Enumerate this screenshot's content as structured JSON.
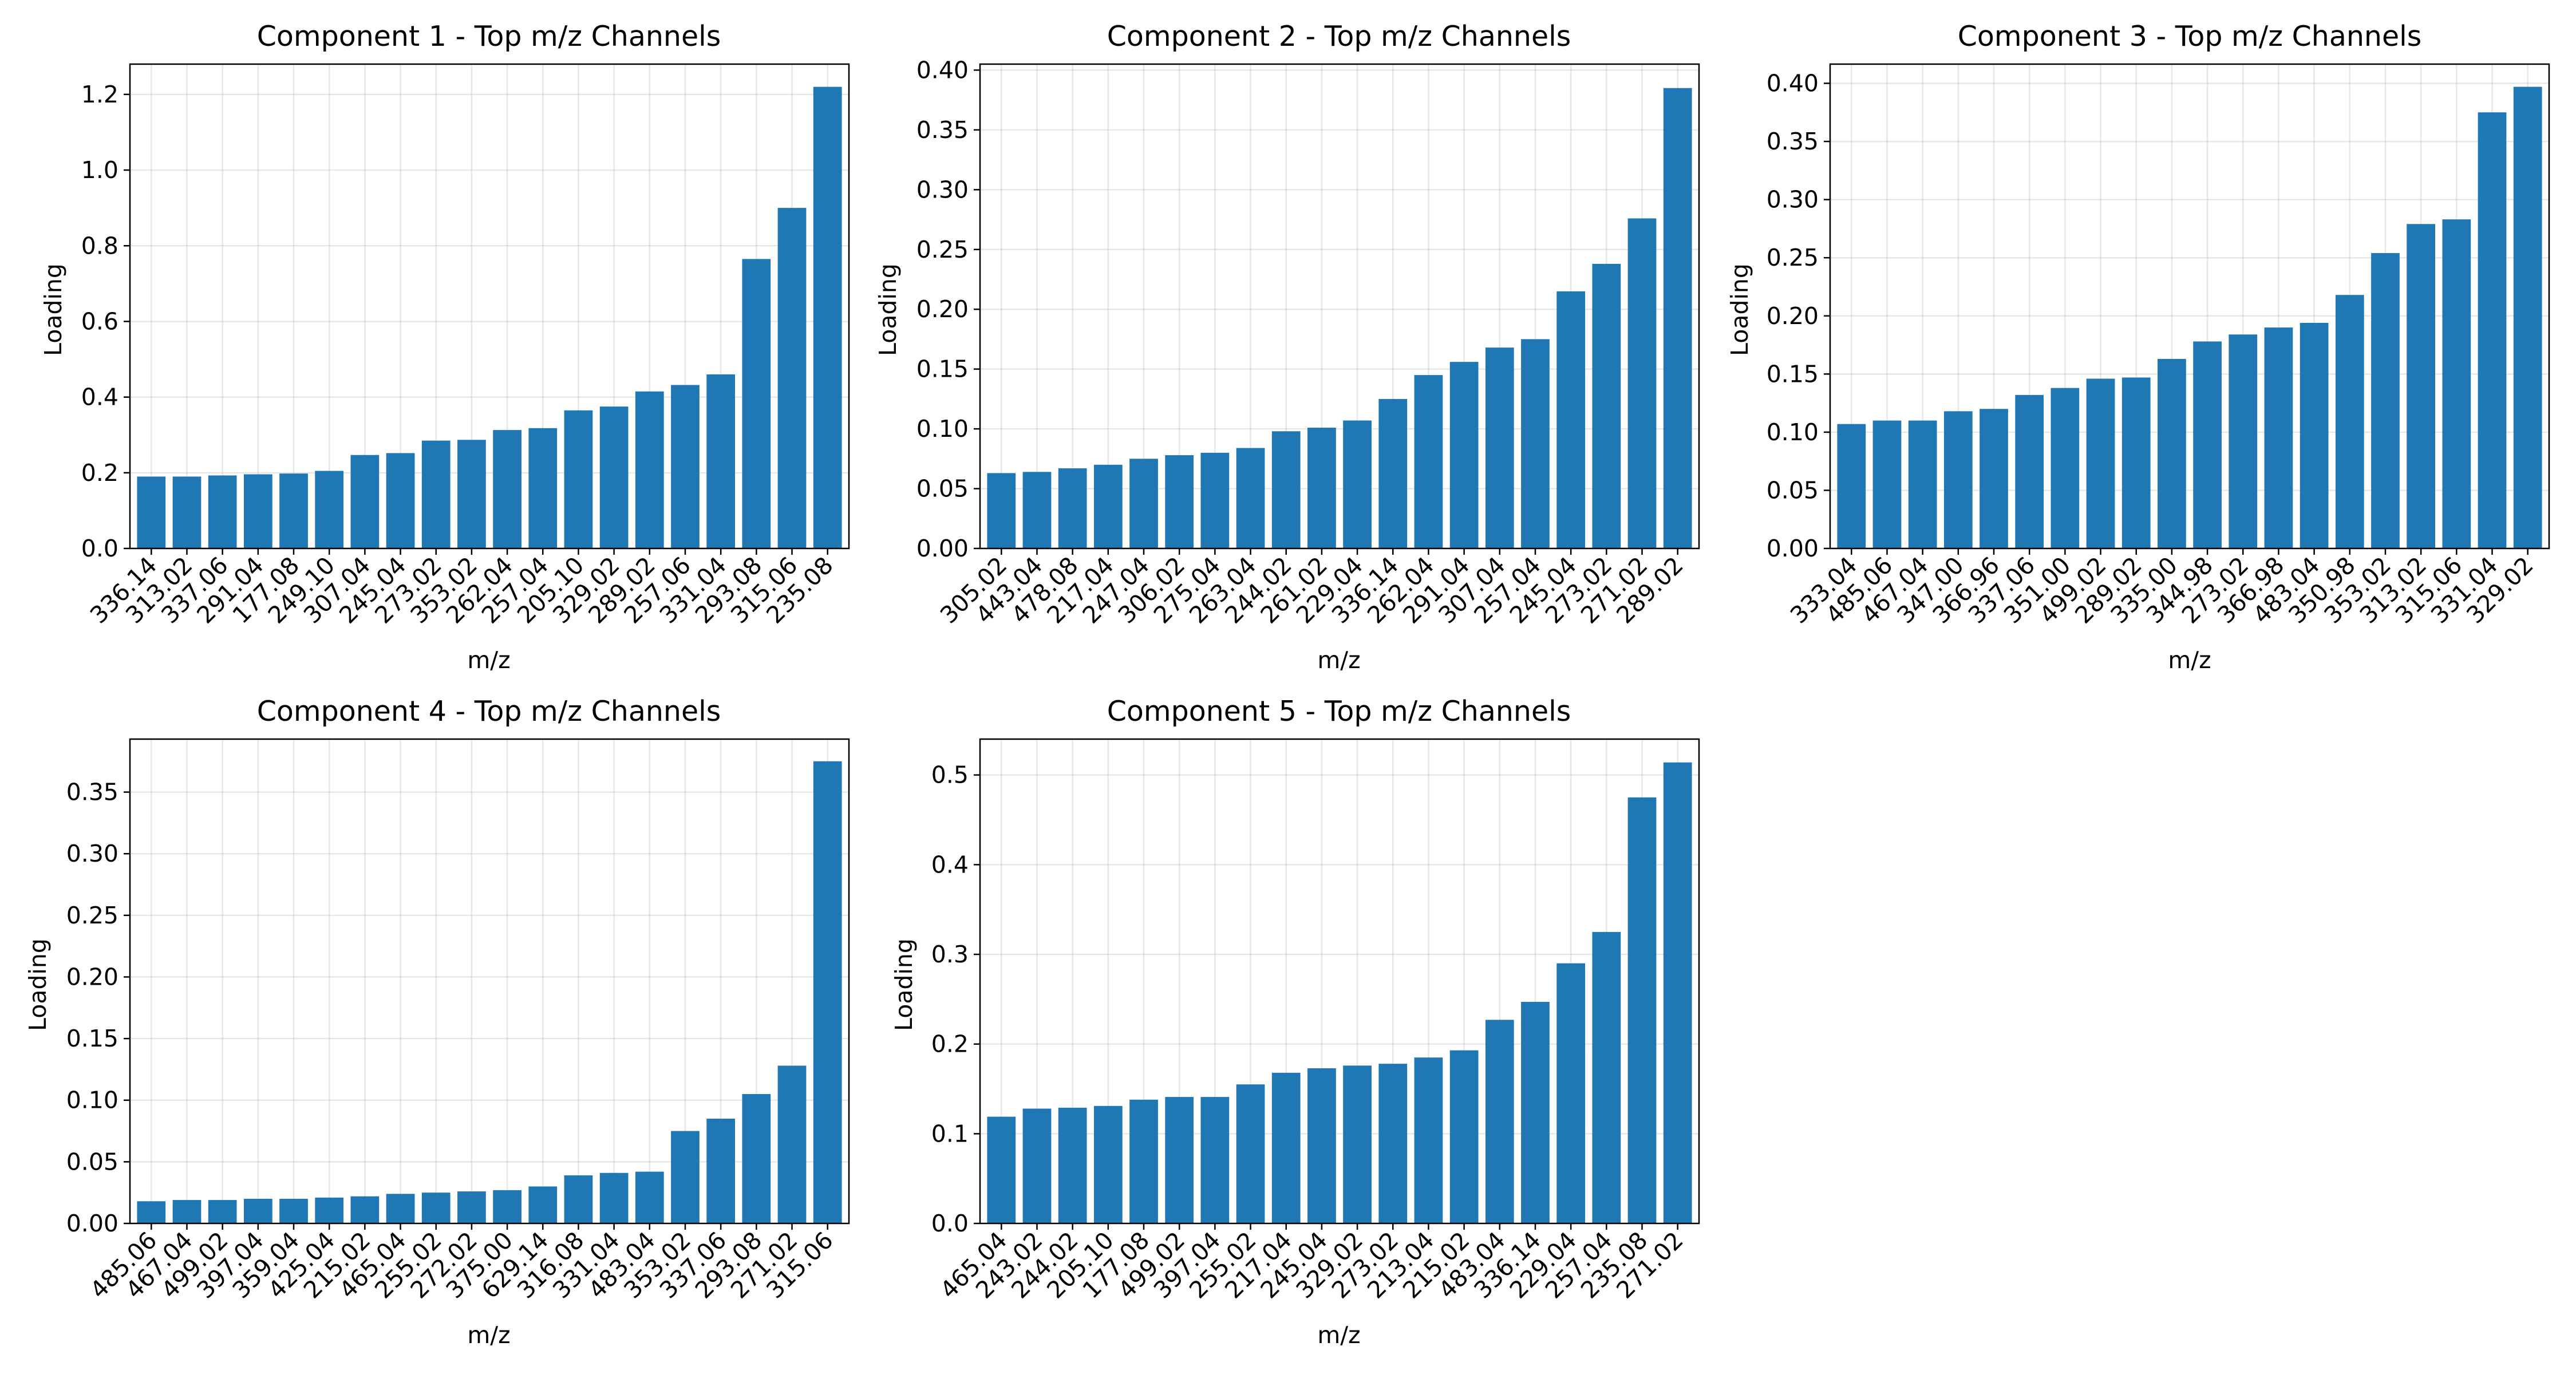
{
  "figure": {
    "bar_color": "#1f77b4",
    "grid": true
  },
  "chart_data": [
    {
      "type": "bar",
      "title": "Component 1 - Top m/z Channels",
      "xlabel": "m/z",
      "ylabel": "Loading",
      "categories": [
        "336.14",
        "313.02",
        "337.06",
        "291.04",
        "177.08",
        "249.10",
        "307.04",
        "245.04",
        "273.02",
        "353.02",
        "262.04",
        "257.04",
        "205.10",
        "329.02",
        "289.02",
        "257.06",
        "331.04",
        "293.08",
        "315.06",
        "235.08"
      ],
      "values": [
        0.19,
        0.19,
        0.193,
        0.196,
        0.198,
        0.205,
        0.247,
        0.252,
        0.285,
        0.287,
        0.313,
        0.318,
        0.365,
        0.375,
        0.415,
        0.432,
        0.46,
        0.765,
        0.9,
        1.22
      ],
      "ylim": [
        0,
        1.28
      ],
      "yticks": [
        "0.0",
        "0.2",
        "0.4",
        "0.6",
        "0.8",
        "1.0",
        "1.2"
      ]
    },
    {
      "type": "bar",
      "title": "Component 2 - Top m/z Channels",
      "xlabel": "m/z",
      "ylabel": "Loading",
      "categories": [
        "305.02",
        "443.04",
        "478.08",
        "217.04",
        "247.04",
        "306.02",
        "275.04",
        "263.04",
        "244.02",
        "261.02",
        "229.04",
        "336.14",
        "262.04",
        "291.04",
        "307.04",
        "257.04",
        "245.04",
        "273.02",
        "271.02",
        "289.02"
      ],
      "values": [
        0.063,
        0.064,
        0.067,
        0.07,
        0.075,
        0.078,
        0.08,
        0.084,
        0.098,
        0.101,
        0.107,
        0.125,
        0.145,
        0.156,
        0.168,
        0.175,
        0.215,
        0.238,
        0.276,
        0.385
      ],
      "ylim": [
        0,
        0.405
      ],
      "yticks": [
        "0.00",
        "0.05",
        "0.10",
        "0.15",
        "0.20",
        "0.25",
        "0.30",
        "0.35",
        "0.40"
      ]
    },
    {
      "type": "bar",
      "title": "Component 3 - Top m/z Channels",
      "xlabel": "m/z",
      "ylabel": "Loading",
      "categories": [
        "333.04",
        "485.06",
        "467.04",
        "347.00",
        "366.96",
        "337.06",
        "351.00",
        "499.02",
        "289.02",
        "335.00",
        "344.98",
        "273.02",
        "366.98",
        "483.04",
        "350.98",
        "353.02",
        "313.02",
        "315.06",
        "331.04",
        "329.02"
      ],
      "values": [
        0.107,
        0.11,
        0.11,
        0.118,
        0.12,
        0.132,
        0.138,
        0.146,
        0.147,
        0.163,
        0.178,
        0.184,
        0.19,
        0.194,
        0.218,
        0.254,
        0.279,
        0.283,
        0.375,
        0.397
      ],
      "ylim": [
        0,
        0.4165
      ],
      "yticks": [
        "0.00",
        "0.05",
        "0.10",
        "0.15",
        "0.20",
        "0.25",
        "0.30",
        "0.35",
        "0.40"
      ]
    },
    {
      "type": "bar",
      "title": "Component 4 - Top m/z Channels",
      "xlabel": "m/z",
      "ylabel": "Loading",
      "categories": [
        "485.06",
        "467.04",
        "499.02",
        "397.04",
        "359.04",
        "425.04",
        "215.02",
        "465.04",
        "255.02",
        "272.02",
        "375.00",
        "629.14",
        "316.08",
        "331.04",
        "483.04",
        "353.02",
        "337.06",
        "293.08",
        "271.02",
        "315.06"
      ],
      "values": [
        0.018,
        0.019,
        0.019,
        0.02,
        0.02,
        0.021,
        0.022,
        0.024,
        0.025,
        0.026,
        0.027,
        0.03,
        0.039,
        0.041,
        0.042,
        0.075,
        0.085,
        0.105,
        0.128,
        0.375
      ],
      "ylim": [
        0,
        0.393
      ],
      "yticks": [
        "0.00",
        "0.05",
        "0.10",
        "0.15",
        "0.20",
        "0.25",
        "0.30",
        "0.35"
      ]
    },
    {
      "type": "bar",
      "title": "Component 5 - Top m/z Channels",
      "xlabel": "m/z",
      "ylabel": "Loading",
      "categories": [
        "465.04",
        "243.02",
        "244.02",
        "205.10",
        "177.08",
        "499.02",
        "397.04",
        "255.02",
        "217.04",
        "245.04",
        "329.02",
        "273.02",
        "213.04",
        "215.02",
        "483.04",
        "336.14",
        "229.04",
        "257.04",
        "235.08",
        "271.02"
      ],
      "values": [
        0.119,
        0.128,
        0.129,
        0.131,
        0.138,
        0.141,
        0.141,
        0.155,
        0.168,
        0.173,
        0.176,
        0.178,
        0.185,
        0.193,
        0.227,
        0.247,
        0.29,
        0.325,
        0.475,
        0.514
      ],
      "ylim": [
        0,
        0.54
      ],
      "yticks": [
        "0.0",
        "0.1",
        "0.2",
        "0.3",
        "0.4",
        "0.5"
      ]
    }
  ]
}
